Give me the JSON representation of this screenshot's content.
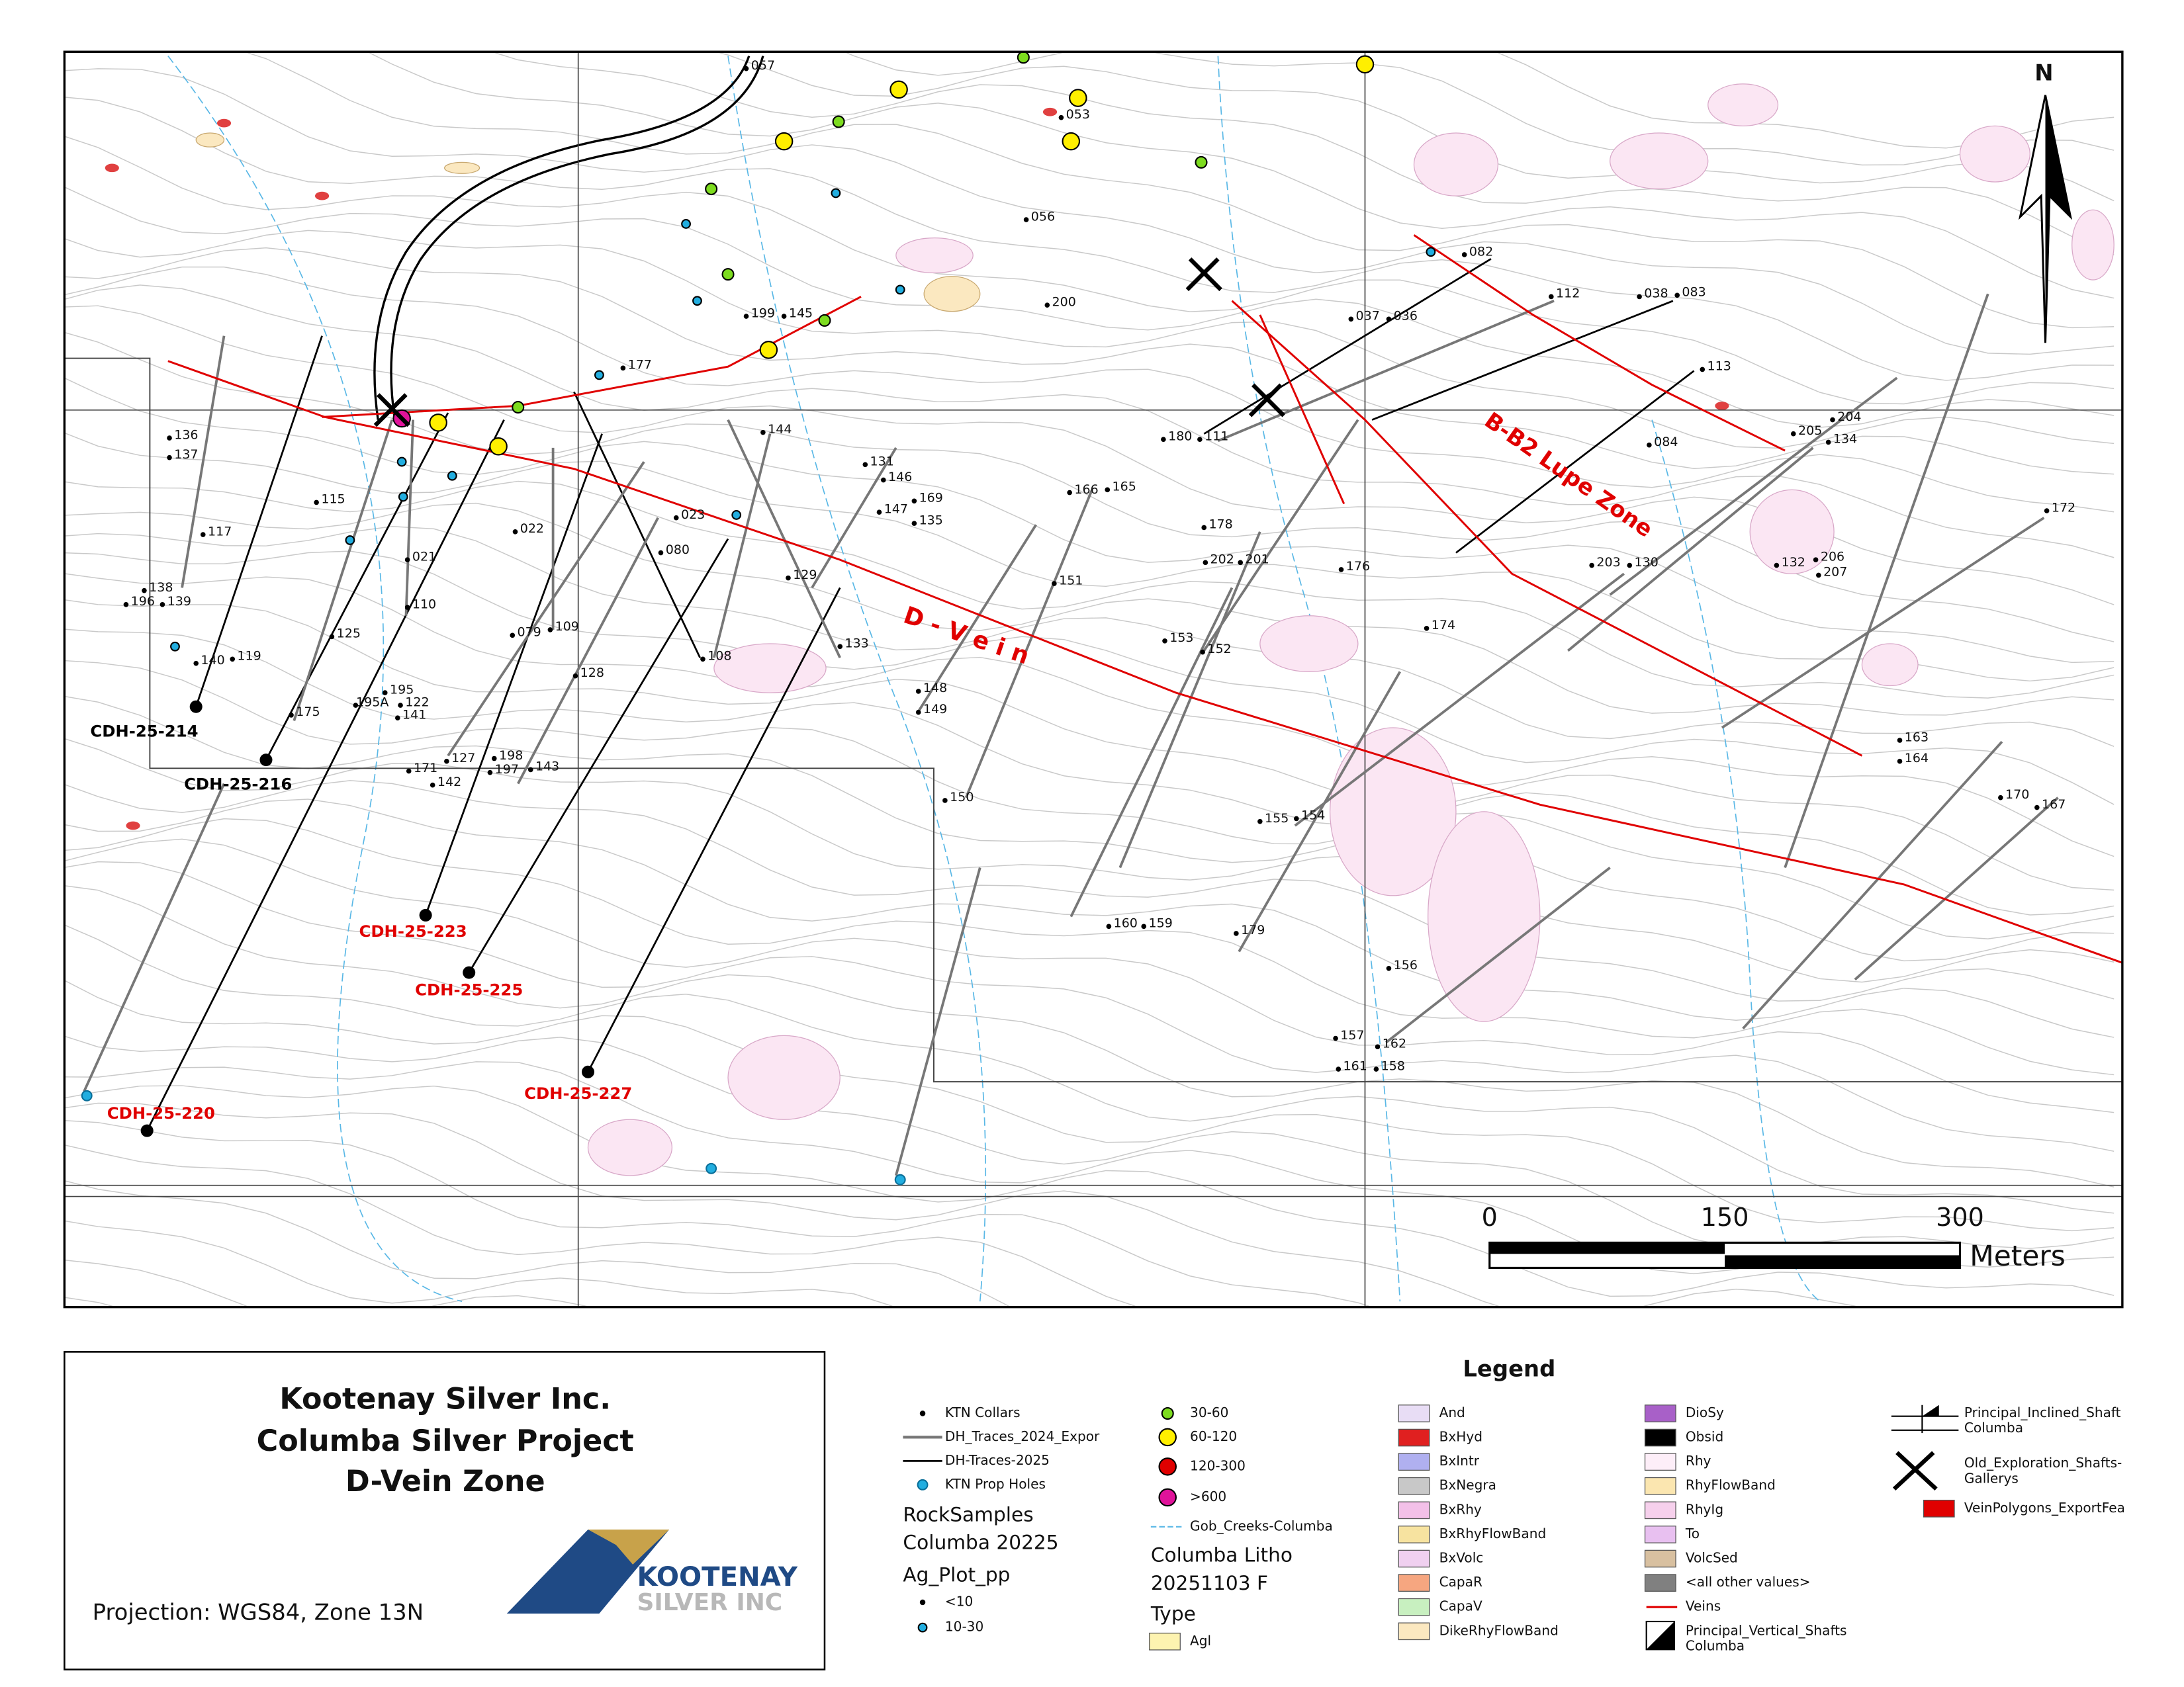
{
  "map": {
    "north": "N",
    "holes": [
      "057",
      "053",
      "056",
      "200",
      "199",
      "145",
      "177",
      "144",
      "136",
      "137",
      "115",
      "117",
      "021",
      "022",
      "110",
      "138",
      "196",
      "139",
      "140",
      "119",
      "125",
      "079",
      "109",
      "080",
      "023",
      "131",
      "146",
      "147",
      "169",
      "135",
      "129",
      "133",
      "108",
      "128",
      "195",
      "195A",
      "122",
      "141",
      "175",
      "127",
      "171",
      "142",
      "198",
      "197",
      "143",
      "166",
      "165",
      "151",
      "148",
      "149",
      "150",
      "180",
      "111",
      "178",
      "202",
      "201",
      "153",
      "152",
      "176",
      "174",
      "155",
      "154",
      "160",
      "159",
      "179",
      "156",
      "157",
      "162",
      "161",
      "158",
      "037",
      "036",
      "082",
      "112",
      "038",
      "083",
      "113",
      "084",
      "205",
      "204",
      "134",
      "203",
      "130",
      "132",
      "206",
      "207",
      "172",
      "163",
      "164",
      "170",
      "167"
    ],
    "collars": [
      {
        "label": "CDH-25-214",
        "color": "#000000"
      },
      {
        "label": "CDH-25-216",
        "color": "#000000"
      },
      {
        "label": "CDH-25-223",
        "color": "#e00000"
      },
      {
        "label": "CDH-25-225",
        "color": "#e00000"
      },
      {
        "label": "CDH-25-220",
        "color": "#e00000"
      },
      {
        "label": "CDH-25-227",
        "color": "#e00000"
      }
    ],
    "zones": [
      "D - V e i n",
      "B-B2 Lupe Zone"
    ],
    "scale": {
      "ticks": [
        0,
        150,
        300
      ],
      "unit": "Meters"
    }
  },
  "title_block": {
    "lines": [
      "Kootenay Silver Inc.",
      "Columba Silver Project",
      "D-Vein Zone"
    ],
    "projection": "Projection: WGS84, Zone 13N",
    "logo": [
      "KOOTENAY",
      "SILVER INC"
    ]
  },
  "legend": {
    "title": "Legend",
    "items": [
      [
        "KTN Collars"
      ],
      [
        "DH_Traces_2024_Expor"
      ],
      [
        "DH-Traces-2025"
      ],
      [
        "KTN Prop Holes"
      ],
      [
        "RockSamples",
        "Columba 20225"
      ],
      [
        "Ag_Plot_pp"
      ],
      [
        "<10"
      ],
      [
        "10-30"
      ],
      [
        "30-60"
      ],
      [
        "60-120"
      ],
      [
        "120-300"
      ],
      [
        ">600"
      ],
      [
        "Gob_Creeks-Columba"
      ],
      [
        "Columba Litho",
        "20251103 F"
      ],
      [
        "Type"
      ],
      [
        "Agl"
      ],
      [
        "And"
      ],
      [
        "BxHyd"
      ],
      [
        "BxIntr"
      ],
      [
        "BxNegra"
      ],
      [
        "BxRhy"
      ],
      [
        "BxRhyFlowBand"
      ],
      [
        "BxVolc"
      ],
      [
        "CapaR"
      ],
      [
        "CapaV"
      ],
      [
        "DikeRhyFlowBand"
      ],
      [
        "DioSy"
      ],
      [
        "Obsid"
      ],
      [
        "Rhy"
      ],
      [
        "RhyFlowBand"
      ],
      [
        "RhyIg"
      ],
      [
        "To"
      ],
      [
        "VolcSed"
      ],
      [
        "<all other values>"
      ],
      [
        "Veins"
      ],
      [
        "Principal_Vertical_Shafts",
        "Columba"
      ],
      [
        "Principal_Inclined_Shaft",
        "Columba"
      ],
      [
        "Old_Exploration_Shafts-",
        "Gallerys"
      ],
      [
        "VeinPolygons_ExportFea"
      ]
    ]
  }
}
